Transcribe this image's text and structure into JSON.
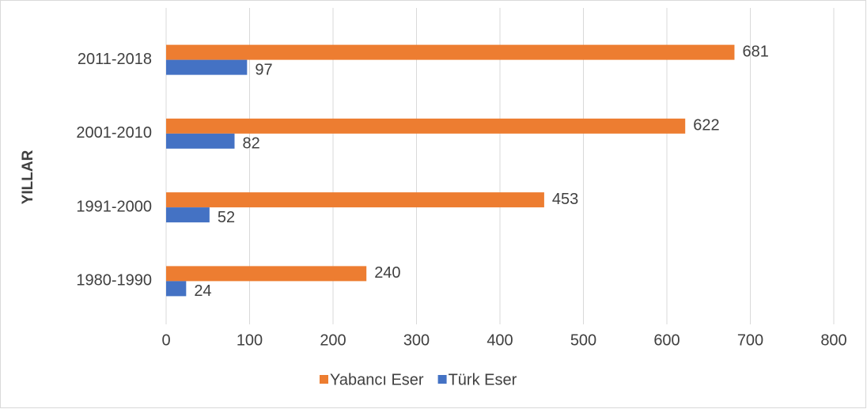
{
  "chart_data": {
    "type": "hbar",
    "ylabel": "YILLAR",
    "categories": [
      "1980-1990",
      "1991-2000",
      "2001-2010",
      "2011-2018"
    ],
    "series": [
      {
        "name": "Yabancı Eser",
        "color": "#ed7d31",
        "values": [
          240,
          453,
          622,
          681
        ]
      },
      {
        "name": "Türk Eser",
        "color": "#4472c4",
        "values": [
          24,
          52,
          82,
          97
        ]
      }
    ],
    "xlim": [
      0,
      800
    ],
    "xticks": [
      0,
      100,
      200,
      300,
      400,
      500,
      600,
      700,
      800
    ],
    "grid": true,
    "legend": "bottom"
  }
}
